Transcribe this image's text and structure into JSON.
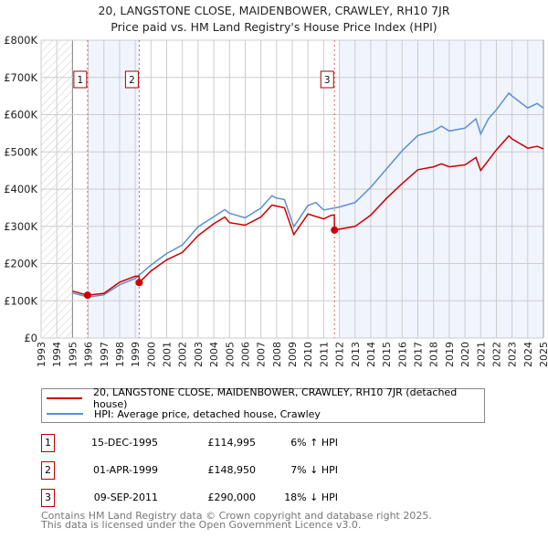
{
  "title_line1": "20, LANGSTONE CLOSE, MAIDENBOWER, CRAWLEY, RH10 7JR",
  "title_line2": "Price paid vs. HM Land Registry's House Price Index (HPI)",
  "colors": {
    "property": "#cc0000",
    "hpi": "#5b8fd4",
    "grid": "#cccccc",
    "shade": "#f0f4fd",
    "marker_border": "#aa0000"
  },
  "chart_data": {
    "type": "line",
    "title": "Price paid vs. HM Land Registry's House Price Index (HPI)",
    "xlim": [
      1993,
      2025
    ],
    "ylim": [
      0,
      800000
    ],
    "x_ticks": [
      "1993",
      "1994",
      "1995",
      "1996",
      "1997",
      "1998",
      "1999",
      "2000",
      "2001",
      "2002",
      "2003",
      "2004",
      "2005",
      "2006",
      "2007",
      "2008",
      "2009",
      "2010",
      "2011",
      "2012",
      "2013",
      "2014",
      "2015",
      "2016",
      "2017",
      "2018",
      "2019",
      "2020",
      "2021",
      "2022",
      "2023",
      "2024",
      "2025"
    ],
    "y_ticks": [
      {
        "v": 0,
        "label": "£0"
      },
      {
        "v": 100000,
        "label": "£100K"
      },
      {
        "v": 200000,
        "label": "£200K"
      },
      {
        "v": 300000,
        "label": "£300K"
      },
      {
        "v": 400000,
        "label": "£400K"
      },
      {
        "v": 500000,
        "label": "£500K"
      },
      {
        "v": 600000,
        "label": "£600K"
      },
      {
        "v": 700000,
        "label": "£700K"
      },
      {
        "v": 800000,
        "label": "£800K"
      }
    ],
    "grid": true,
    "hatched_range": [
      1993,
      1995
    ],
    "shaded_ranges": [
      [
        1995.96,
        1999.25
      ],
      [
        2012.0,
        2025
      ]
    ],
    "series": [
      {
        "name": "20, LANGSTONE CLOSE, MAIDENBOWER, CRAWLEY, RH10 7JR (detached house)",
        "color": "#cc0000",
        "x": [
          1995.0,
          1995.96,
          1997,
          1998,
          1999,
          1999.24,
          1999.25,
          2000,
          2001,
          2002,
          2003,
          2004,
          2004.7,
          2005,
          2006,
          2007,
          2007.7,
          2008.5,
          2009.1,
          2010,
          2011,
          2011.5,
          2011.68,
          2011.69,
          2013,
          2014,
          2015,
          2016,
          2017,
          2018,
          2018.5,
          2019,
          2020,
          2020.7,
          2021,
          2022,
          2022.8,
          2023,
          2024,
          2024.6,
          2025
        ],
        "y": [
          126000,
          115000,
          120000,
          150000,
          166000,
          166000,
          149000,
          180000,
          210000,
          230000,
          275000,
          307000,
          325000,
          310000,
          303000,
          325000,
          357000,
          350000,
          278000,
          333000,
          320000,
          330000,
          330000,
          290000,
          300000,
          330000,
          375000,
          415000,
          452000,
          460000,
          468000,
          460000,
          465000,
          485000,
          450000,
          505000,
          543000,
          535000,
          510000,
          515000,
          508000
        ]
      },
      {
        "name": "HPI: Average price, detached house, Crawley",
        "color": "#5b8fd4",
        "x": [
          1995.0,
          1996,
          1997,
          1998,
          1999,
          2000,
          2001,
          2002,
          2003,
          2004,
          2004.7,
          2005,
          2006,
          2007,
          2007.7,
          2008,
          2008.5,
          2009.1,
          2010,
          2010.5,
          2011,
          2012,
          2013,
          2014,
          2015,
          2016,
          2017,
          2018,
          2018.5,
          2019,
          2020,
          2020.7,
          2021,
          2021.5,
          2022,
          2022.8,
          2023,
          2024,
          2024.6,
          2025
        ],
        "y": [
          121000,
          110000,
          116000,
          143000,
          160000,
          196000,
          227000,
          250000,
          299000,
          326000,
          345000,
          335000,
          323000,
          349000,
          382000,
          376000,
          372000,
          299000,
          356000,
          364000,
          344000,
          352000,
          364000,
          405000,
          454000,
          503000,
          544000,
          556000,
          569000,
          556000,
          564000,
          589000,
          548000,
          589000,
          613000,
          658000,
          650000,
          618000,
          630000,
          618000
        ]
      }
    ],
    "sales": [
      {
        "id": "1",
        "x": 1995.96,
        "y": 114995
      },
      {
        "id": "2",
        "x": 1999.25,
        "y": 148950
      },
      {
        "id": "3",
        "x": 2011.69,
        "y": 290000
      }
    ]
  },
  "legend": {
    "property_label": "20, LANGSTONE CLOSE, MAIDENBOWER, CRAWLEY, RH10 7JR (detached house)",
    "hpi_label": "HPI: Average price, detached house, Crawley"
  },
  "transactions": [
    {
      "id": "1",
      "date": "15-DEC-1995",
      "price": "£114,995",
      "hpi": "6% ↑ HPI"
    },
    {
      "id": "2",
      "date": "01-APR-1999",
      "price": "£148,950",
      "hpi": "7% ↓ HPI"
    },
    {
      "id": "3",
      "date": "09-SEP-2011",
      "price": "£290,000",
      "hpi": "18% ↓ HPI"
    }
  ],
  "footer": {
    "line1": "Contains HM Land Registry data © Crown copyright and database right 2025.",
    "line2": "This data is licensed under the Open Government Licence v3.0."
  }
}
